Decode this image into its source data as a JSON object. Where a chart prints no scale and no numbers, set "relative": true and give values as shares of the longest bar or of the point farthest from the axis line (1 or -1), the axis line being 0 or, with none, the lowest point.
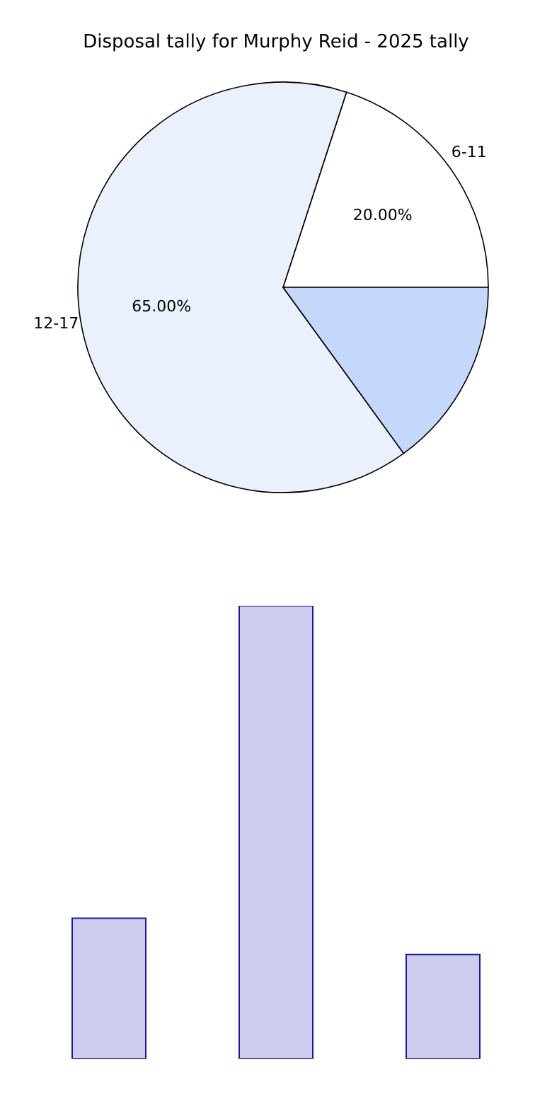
{
  "chart_data": [
    {
      "type": "pie",
      "title": "Disposal tally for Murphy Reid - 2025 tally",
      "categories": [
        "6-11",
        "12-17",
        null
      ],
      "values": [
        20,
        65,
        15
      ],
      "colors": [
        "#ffffff",
        "#eaf0fc",
        "#c5d8fc"
      ],
      "value_labels": [
        "20.00%",
        "65.00%",
        null
      ]
    },
    {
      "type": "bar",
      "relative": true,
      "categories": [
        null,
        null,
        null
      ],
      "values": [
        0.31,
        1,
        0.23
      ],
      "color": "#ccccee"
    }
  ]
}
